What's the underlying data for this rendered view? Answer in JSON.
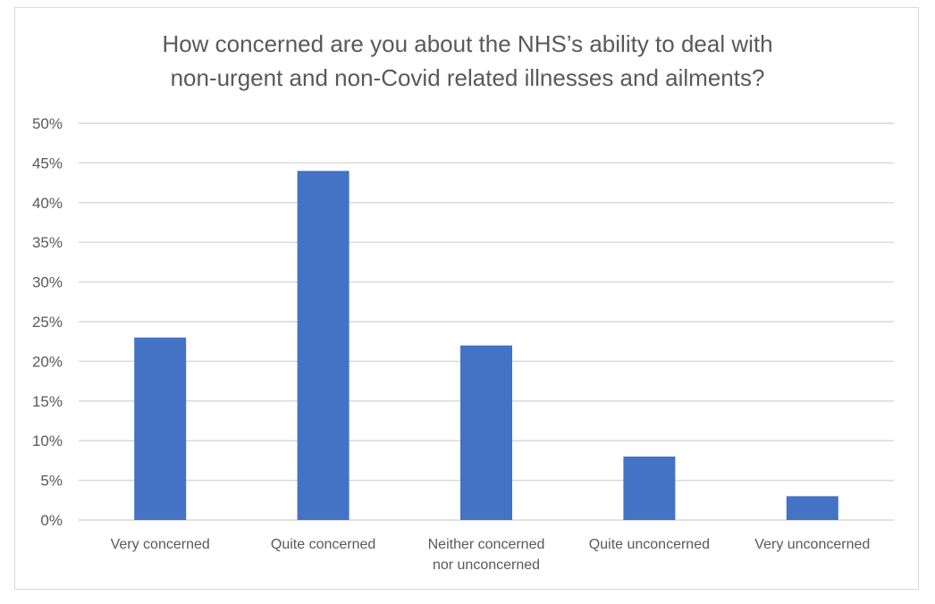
{
  "chart_data": {
    "type": "bar",
    "title_lines": [
      "How concerned are you about the NHS’s ability to deal with",
      "non-urgent and non-Covid related illnesses and ailments?"
    ],
    "categories": [
      [
        "Very concerned"
      ],
      [
        "Quite concerned"
      ],
      [
        "Neither concerned",
        "nor unconcerned"
      ],
      [
        "Quite unconcerned"
      ],
      [
        "Very unconcerned"
      ]
    ],
    "values": [
      23,
      44,
      22,
      8,
      3
    ],
    "ylim": [
      0,
      50
    ],
    "yticks": [
      0,
      5,
      10,
      15,
      20,
      25,
      30,
      35,
      40,
      45,
      50
    ],
    "ytick_labels": [
      "0%",
      "5%",
      "10%",
      "15%",
      "20%",
      "25%",
      "30%",
      "35%",
      "40%",
      "45%",
      "50%"
    ],
    "grid": true,
    "legend": "none",
    "colors": {
      "bar": "#4472c4",
      "grid": "#d9d9d9",
      "text": "#595959"
    }
  }
}
